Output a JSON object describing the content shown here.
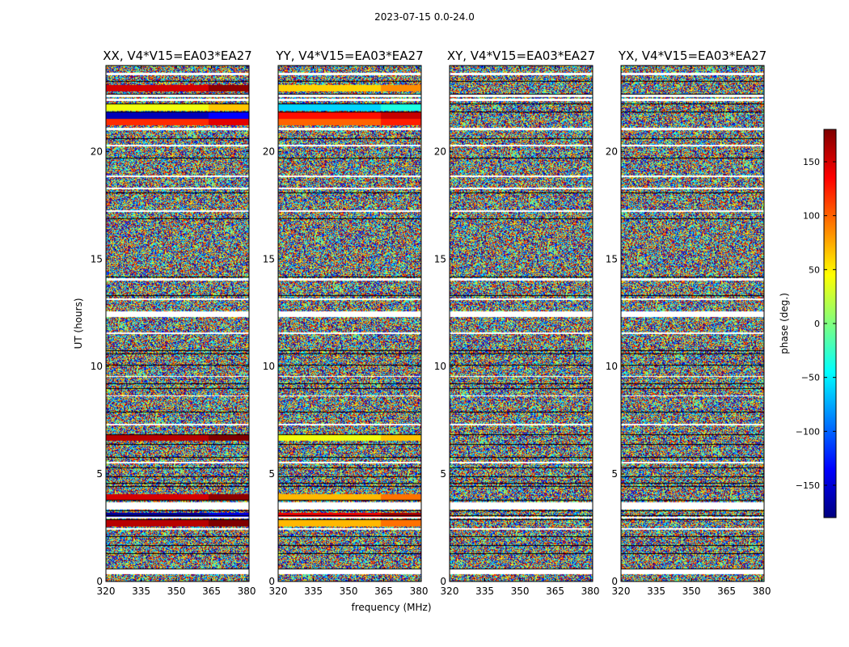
{
  "figure": {
    "suptitle": "2023-07-15 0.0-24.0"
  },
  "chart_data": [
    {
      "type": "heatmap",
      "title": "XX, V4*V15=EA03*EA27",
      "xlabel": "",
      "ylabel": "UT (hours)",
      "xlim": [
        320,
        381
      ],
      "ylim": [
        0,
        24
      ],
      "xticks": [
        "320",
        "335",
        "350",
        "365",
        "380"
      ],
      "yticks": [
        "0",
        "5",
        "10",
        "15",
        "20"
      ],
      "value_range": [
        -180,
        180
      ],
      "coherent_bands": [
        {
          "from": 22.8,
          "to": 23.1,
          "phase": 150
        },
        {
          "from": 21.9,
          "to": 22.2,
          "phase": 40
        },
        {
          "from": 21.5,
          "to": 21.8,
          "phase": -160
        },
        {
          "from": 21.2,
          "to": 21.5,
          "phase": 120
        },
        {
          "from": 6.55,
          "to": 6.8,
          "phase": 160
        },
        {
          "from": 3.8,
          "to": 4.05,
          "phase": 150
        },
        {
          "from": 3.0,
          "to": 3.2,
          "phase": -170
        },
        {
          "from": 2.55,
          "to": 2.85,
          "phase": 160
        }
      ]
    },
    {
      "type": "heatmap",
      "title": "YY, V4*V15=EA03*EA27",
      "xlabel": "frequency (MHz)",
      "ylabel": "",
      "xlim": [
        320,
        381
      ],
      "ylim": [
        0,
        24
      ],
      "xticks": [
        "320",
        "335",
        "350",
        "365",
        "380"
      ],
      "yticks": [
        "0",
        "5",
        "10",
        "15",
        "20"
      ],
      "value_range": [
        -180,
        180
      ],
      "coherent_bands": [
        {
          "from": 22.8,
          "to": 23.1,
          "phase": 60
        },
        {
          "from": 21.9,
          "to": 22.2,
          "phase": -60
        },
        {
          "from": 21.5,
          "to": 21.8,
          "phase": 130
        },
        {
          "from": 21.2,
          "to": 21.5,
          "phase": 100
        },
        {
          "from": 6.55,
          "to": 6.8,
          "phase": 40
        },
        {
          "from": 3.8,
          "to": 4.05,
          "phase": 70
        },
        {
          "from": 3.0,
          "to": 3.2,
          "phase": 140
        },
        {
          "from": 2.55,
          "to": 2.85,
          "phase": 70
        }
      ]
    },
    {
      "type": "heatmap",
      "title": "XY, V4*V15=EA03*EA27",
      "xlabel": "",
      "ylabel": "",
      "xlim": [
        320,
        381
      ],
      "ylim": [
        0,
        24
      ],
      "xticks": [
        "320",
        "335",
        "350",
        "365",
        "380"
      ],
      "yticks": [
        "0",
        "5",
        "10",
        "15",
        "20"
      ],
      "value_range": [
        -180,
        180
      ],
      "coherent_bands": []
    },
    {
      "type": "heatmap",
      "title": "YX, V4*V15=EA03*EA27",
      "xlabel": "",
      "ylabel": "",
      "xlim": [
        320,
        381
      ],
      "ylim": [
        0,
        24
      ],
      "xticks": [
        "320",
        "335",
        "350",
        "365",
        "380"
      ],
      "yticks": [
        "0",
        "5",
        "10",
        "15",
        "20"
      ],
      "value_range": [
        -180,
        180
      ],
      "coherent_bands": []
    }
  ],
  "colorbar": {
    "label": "phase (deg.)",
    "range": [
      -180,
      180
    ],
    "ticks": [
      "150",
      "100",
      "50",
      "0",
      "−50",
      "−100",
      "−150"
    ],
    "tick_values": [
      150,
      100,
      50,
      0,
      -50,
      -100,
      -150
    ],
    "colormap": "jet",
    "colormap_stops": [
      "#00007f",
      "#0000ff",
      "#007fff",
      "#00ffff",
      "#7fff7f",
      "#ffff00",
      "#ff7f00",
      "#ff0000",
      "#7f0000"
    ]
  },
  "flagged_intervals_hours": [
    [
      23.55,
      23.65
    ],
    [
      22.55,
      22.65
    ],
    [
      22.35,
      22.45
    ],
    [
      21.0,
      21.1
    ],
    [
      20.25,
      20.32
    ],
    [
      18.8,
      18.87
    ],
    [
      18.25,
      18.32
    ],
    [
      17.2,
      17.27
    ],
    [
      14.0,
      14.12
    ],
    [
      13.1,
      13.17
    ],
    [
      12.3,
      12.55
    ],
    [
      11.5,
      11.57
    ],
    [
      9.5,
      9.57
    ],
    [
      8.6,
      8.67
    ],
    [
      7.25,
      7.32
    ],
    [
      5.5,
      5.57
    ],
    [
      3.35,
      3.7
    ],
    [
      2.95,
      3.02
    ],
    [
      2.4,
      2.47
    ],
    [
      0.35,
      0.55
    ]
  ],
  "dark_rows_hours": [
    23.3,
    22.7,
    22.25,
    21.85,
    20.6,
    19.7,
    18.1,
    16.9,
    14.2,
    13.3,
    12.55,
    10.75,
    10.6,
    10.1,
    9.2,
    9.0,
    7.9,
    6.85,
    6.4,
    5.8,
    5.3,
    4.9,
    4.6,
    4.45,
    3.8,
    3.3,
    3.1,
    2.9,
    2.1,
    1.7,
    1.3,
    0.6
  ]
}
